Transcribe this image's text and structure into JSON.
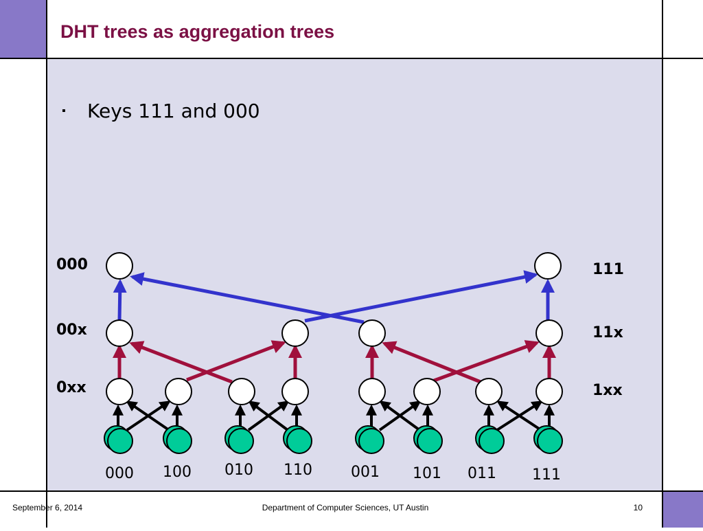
{
  "header": {
    "title": "DHT trees as aggregation trees"
  },
  "body": {
    "bullets": [
      "Keys 111 and 000"
    ]
  },
  "diagram": {
    "left_labels": [
      "000",
      "00x",
      "0xx"
    ],
    "right_labels": [
      "111",
      "11x",
      "1xx"
    ],
    "leaf_labels": [
      "000",
      "100",
      "010",
      "110",
      "001",
      "101",
      "011",
      "111"
    ]
  },
  "footer": {
    "date": "September 6, 2014",
    "department": "Department of Computer Sciences, UT Austin",
    "page": "10"
  }
}
